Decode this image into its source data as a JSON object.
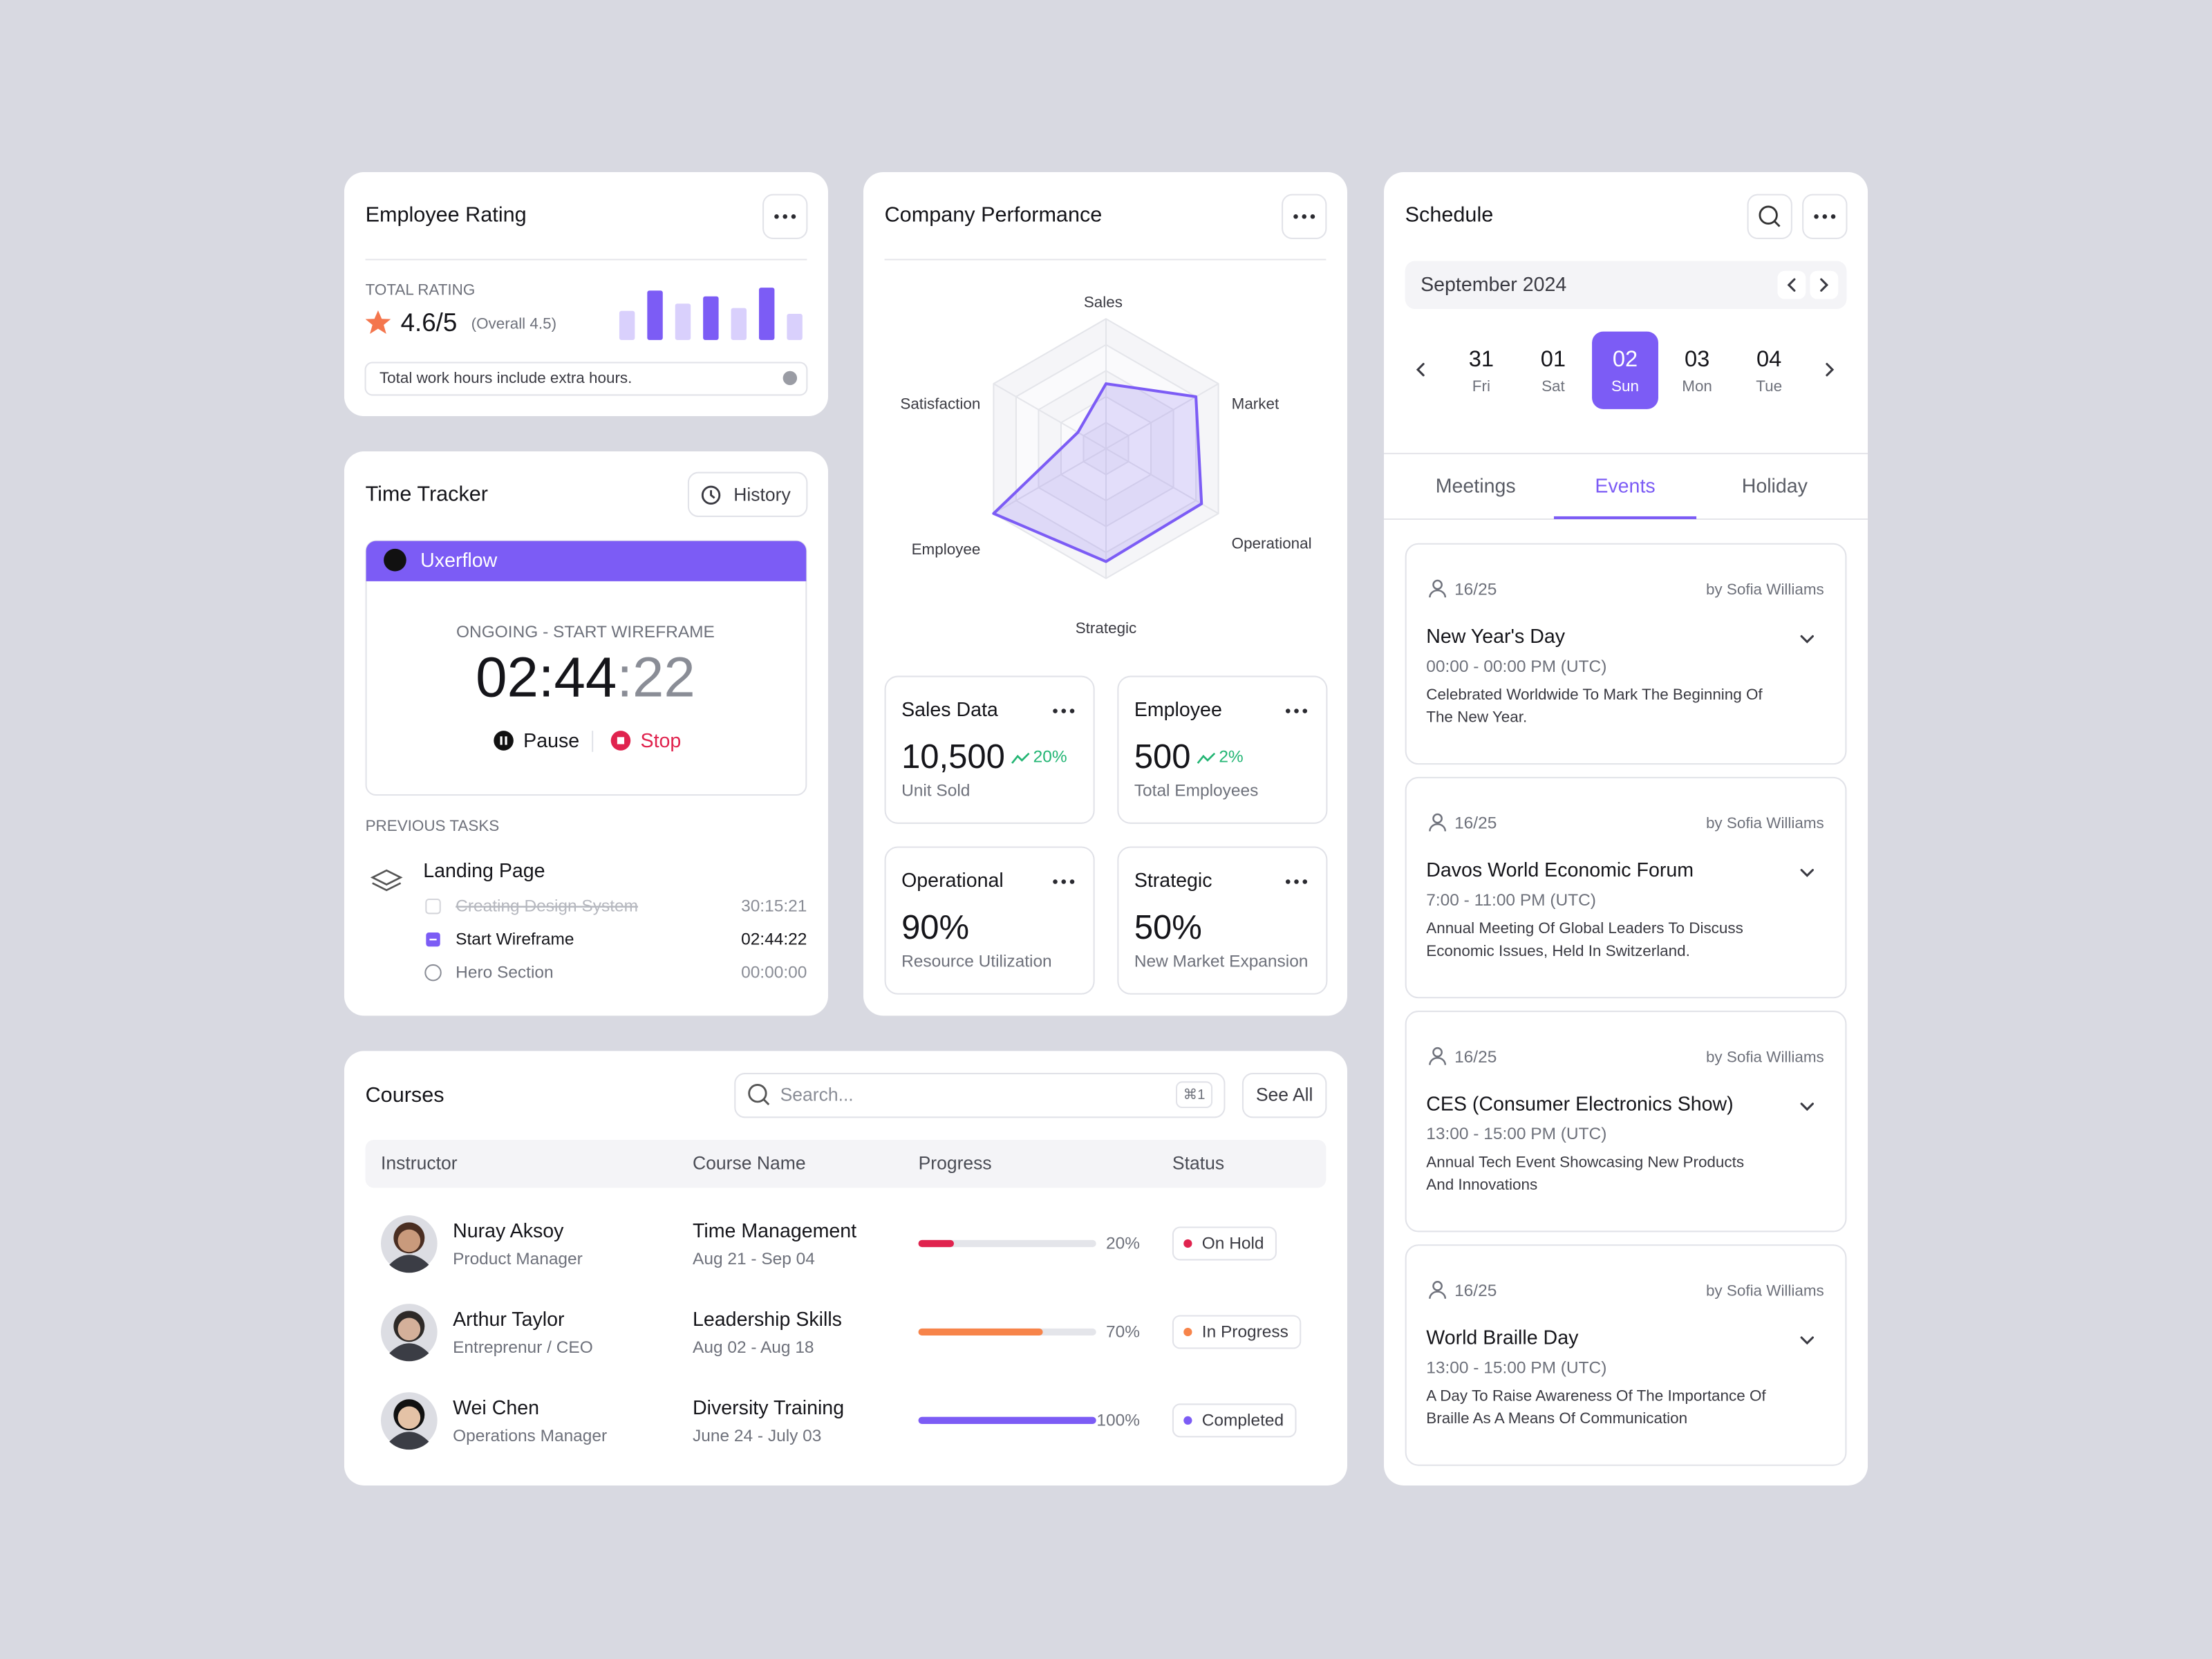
{
  "employee_rating": {
    "title": "Employee Rating",
    "rating_label": "TOTAL RATING",
    "rating": "4.6/5",
    "overall": "(Overall 4.5)",
    "note": "Total work hours include extra hours.",
    "bars": [
      20,
      34,
      25,
      30,
      22,
      36,
      18
    ],
    "bar_colors": [
      "#d9d0fc",
      "#7c5cf5",
      "#d9d0fc",
      "#7c5cf5",
      "#d9d0fc",
      "#7c5cf5",
      "#d9d0fc"
    ]
  },
  "time_tracker": {
    "title": "Time Tracker",
    "history_button": "History",
    "project": "Uxerflow",
    "status": "ONGOING - START WIREFRAME",
    "time_main": "02:44",
    "time_seconds": ":22",
    "pause": "Pause",
    "stop": "Stop",
    "previous_label": "PREVIOUS TASKS",
    "group": "Landing Page",
    "tasks": [
      {
        "name": "Creating Design System",
        "time": "30:15:21",
        "state": "done"
      },
      {
        "name": "Start Wireframe",
        "time": "02:44:22",
        "state": "active"
      },
      {
        "name": "Hero Section",
        "time": "00:00:00",
        "state": "pending"
      }
    ]
  },
  "company_performance": {
    "title": "Company Performance",
    "radar": {
      "type": "radar",
      "axes": [
        "Sales",
        "Market",
        "Operational",
        "Strategic",
        "Employee",
        "Satisfaction"
      ],
      "values": [
        50,
        80,
        85,
        87,
        100,
        25
      ],
      "rlim": [
        0,
        100
      ],
      "color": "#7c5cf5"
    },
    "kpis": [
      {
        "title": "Sales Data",
        "value": "10,500",
        "change": "20%",
        "caption": "Unit Sold"
      },
      {
        "title": "Employee",
        "value": "500",
        "change": "2%",
        "caption": "Total Employees"
      },
      {
        "title": "Operational",
        "value": "90%",
        "caption": "Resource Utilization"
      },
      {
        "title": "Strategic",
        "value": "50%",
        "caption": "New Market Expansion"
      }
    ]
  },
  "courses": {
    "title": "Courses",
    "search_placeholder": "Search...",
    "shortcut": "⌘1",
    "see_all": "See All",
    "columns": [
      "Instructor",
      "Course Name",
      "Progress",
      "Status"
    ],
    "rows": [
      {
        "name": "Nuray Aksoy",
        "role": "Product Manager",
        "course": "Time Management",
        "dates": "Aug 21 - Sep 04",
        "progress": 20,
        "progress_label": "20%",
        "status": "On Hold",
        "color": "#e0234e"
      },
      {
        "name": "Arthur Taylor",
        "role": "Entreprenur / CEO",
        "course": "Leadership Skills",
        "dates": "Aug 02 - Aug 18",
        "progress": 70,
        "progress_label": "70%",
        "status": "In Progress",
        "color": "#f7844a"
      },
      {
        "name": "Wei Chen",
        "role": "Operations Manager",
        "course": "Diversity Training",
        "dates": "June 24 - July 03",
        "progress": 100,
        "progress_label": "100%",
        "status": "Completed",
        "color": "#7c5cf5"
      }
    ]
  },
  "schedule": {
    "title": "Schedule",
    "month": "September 2024",
    "days": [
      {
        "date": "31",
        "weekday": "Fri"
      },
      {
        "date": "01",
        "weekday": "Sat"
      },
      {
        "date": "02",
        "weekday": "Sun",
        "selected": true
      },
      {
        "date": "03",
        "weekday": "Mon"
      },
      {
        "date": "04",
        "weekday": "Tue"
      }
    ],
    "tabs": [
      "Meetings",
      "Events",
      "Holiday"
    ],
    "active_tab": 1,
    "events": [
      {
        "count": "16/25",
        "author": "by Sofia Williams",
        "title": "New Year's Day",
        "time": "00:00 - 00:00 PM (UTC)",
        "description": [
          "Celebrated Worldwide To Mark The Beginning Of",
          "The New Year."
        ]
      },
      {
        "count": "16/25",
        "author": "by Sofia Williams",
        "title": "Davos World Economic Forum",
        "time": "7:00 - 11:00 PM (UTC)",
        "description": [
          "Annual Meeting Of Global Leaders To Discuss",
          "Economic Issues, Held In Switzerland."
        ]
      },
      {
        "count": "16/25",
        "author": "by Sofia Williams",
        "title": "CES (Consumer Electronics Show)",
        "time": "13:00 - 15:00 PM (UTC)",
        "description": [
          "Annual Tech Event Showcasing New Products",
          "And Innovations"
        ]
      },
      {
        "count": "16/25",
        "author": "by Sofia Williams",
        "title": "World Braille Day",
        "time": "13:00 - 15:00 PM (UTC)",
        "description": [
          "A Day To Raise Awareness Of The Importance Of",
          "Braille As A Means Of Communication"
        ]
      }
    ]
  }
}
